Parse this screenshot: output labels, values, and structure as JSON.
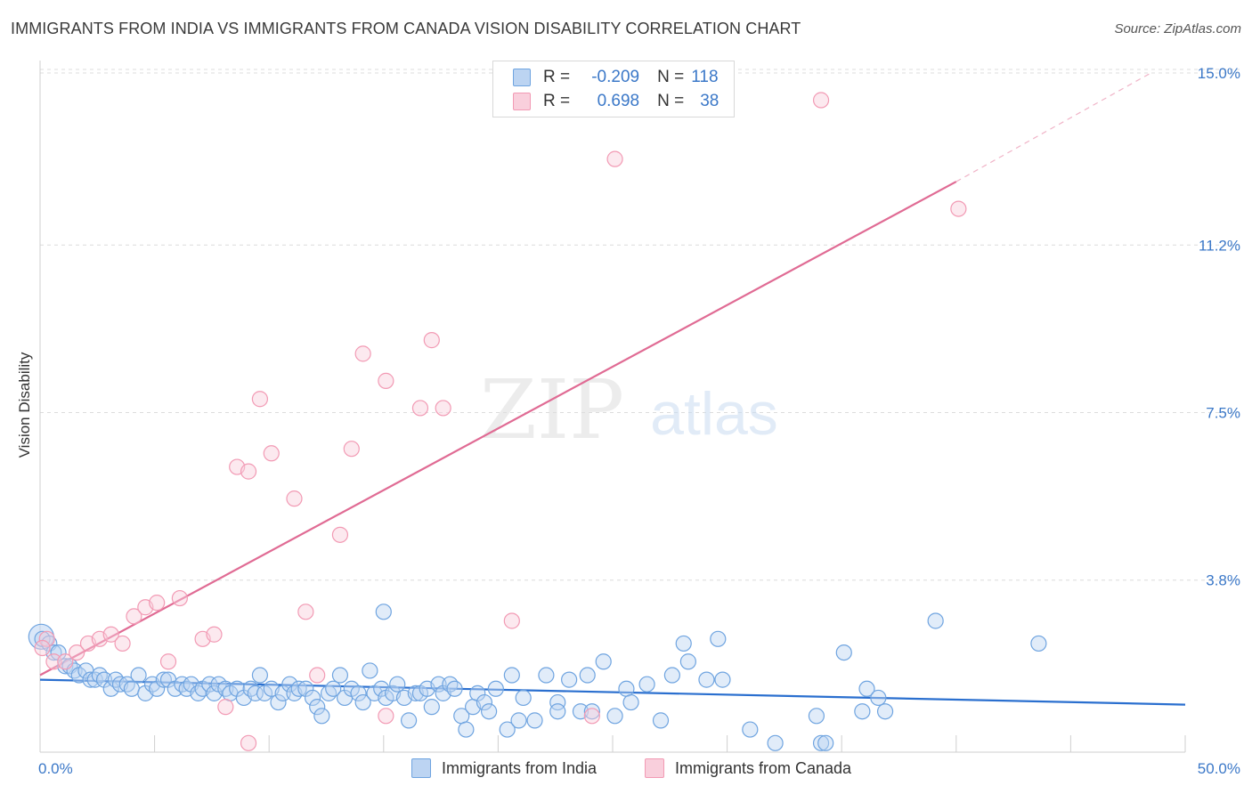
{
  "title": "IMMIGRANTS FROM INDIA VS IMMIGRANTS FROM CANADA VISION DISABILITY CORRELATION CHART",
  "source": "Source: ZipAtlas.com",
  "watermark": {
    "zip": "ZIP",
    "atlas": "atlas"
  },
  "legend": {
    "r_label": "R =",
    "n_label": "N =",
    "rows": [
      {
        "r": "-0.209",
        "n": "118",
        "color": "#6fa4e0",
        "fill": "#bcd4f2"
      },
      {
        "r": "0.698",
        "n": "38",
        "color": "#f29ab4",
        "fill": "#f9cfdc"
      }
    ]
  },
  "bottom_legend": [
    "Immigrants from India",
    "Immigrants from Canada"
  ],
  "chart_data": {
    "type": "scatter",
    "title": "IMMIGRANTS FROM INDIA VS IMMIGRANTS FROM CANADA VISION DISABILITY CORRELATION CHART",
    "xlabel": "",
    "ylabel": "Vision Disability",
    "xlim": [
      0,
      50
    ],
    "ylim": [
      0,
      15.0
    ],
    "x_tick_labels": [
      "0.0%",
      "50.0%"
    ],
    "y_ticks": [
      3.8,
      7.5,
      11.2,
      15.0
    ],
    "y_tick_labels": [
      "3.8%",
      "7.5%",
      "11.2%",
      "15.0%"
    ],
    "grid": true,
    "legend_position": "top-center",
    "series": [
      {
        "name": "Immigrants from India",
        "color": "#6fa4e0",
        "fill": "#bcd4f2",
        "trend": {
          "x": [
            0,
            50
          ],
          "y": [
            1.6,
            1.05
          ]
        },
        "points": [
          [
            0.1,
            2.5
          ],
          [
            0.4,
            2.4
          ],
          [
            0.6,
            2.2
          ],
          [
            0.8,
            2.2
          ],
          [
            1.1,
            1.9
          ],
          [
            1.3,
            1.9
          ],
          [
            1.5,
            1.8
          ],
          [
            1.7,
            1.7
          ],
          [
            2.0,
            1.8
          ],
          [
            2.2,
            1.6
          ],
          [
            2.4,
            1.6
          ],
          [
            2.6,
            1.7
          ],
          [
            2.8,
            1.6
          ],
          [
            3.1,
            1.4
          ],
          [
            3.3,
            1.6
          ],
          [
            3.5,
            1.5
          ],
          [
            3.8,
            1.5
          ],
          [
            4.0,
            1.4
          ],
          [
            4.3,
            1.7
          ],
          [
            4.6,
            1.3
          ],
          [
            4.9,
            1.5
          ],
          [
            5.1,
            1.4
          ],
          [
            5.4,
            1.6
          ],
          [
            5.6,
            1.6
          ],
          [
            5.9,
            1.4
          ],
          [
            6.2,
            1.5
          ],
          [
            6.4,
            1.4
          ],
          [
            6.6,
            1.5
          ],
          [
            6.9,
            1.3
          ],
          [
            7.1,
            1.4
          ],
          [
            7.4,
            1.5
          ],
          [
            7.6,
            1.3
          ],
          [
            7.8,
            1.5
          ],
          [
            8.1,
            1.4
          ],
          [
            8.3,
            1.3
          ],
          [
            8.6,
            1.4
          ],
          [
            8.9,
            1.2
          ],
          [
            9.2,
            1.4
          ],
          [
            9.4,
            1.3
          ],
          [
            9.6,
            1.7
          ],
          [
            9.8,
            1.3
          ],
          [
            10.1,
            1.4
          ],
          [
            10.4,
            1.1
          ],
          [
            10.6,
            1.3
          ],
          [
            10.9,
            1.5
          ],
          [
            11.1,
            1.3
          ],
          [
            11.3,
            1.4
          ],
          [
            11.6,
            1.4
          ],
          [
            11.9,
            1.2
          ],
          [
            12.1,
            1.0
          ],
          [
            12.3,
            0.8
          ],
          [
            12.6,
            1.3
          ],
          [
            12.8,
            1.4
          ],
          [
            13.1,
            1.7
          ],
          [
            13.3,
            1.2
          ],
          [
            13.6,
            1.4
          ],
          [
            13.9,
            1.3
          ],
          [
            14.1,
            1.1
          ],
          [
            14.4,
            1.8
          ],
          [
            14.6,
            1.3
          ],
          [
            14.9,
            1.4
          ],
          [
            15.1,
            1.2
          ],
          [
            15.4,
            1.3
          ],
          [
            15.6,
            1.5
          ],
          [
            15.9,
            1.2
          ],
          [
            16.1,
            0.7
          ],
          [
            16.4,
            1.3
          ],
          [
            16.6,
            1.3
          ],
          [
            16.9,
            1.4
          ],
          [
            17.1,
            1.0
          ],
          [
            17.4,
            1.5
          ],
          [
            17.6,
            1.3
          ],
          [
            17.9,
            1.5
          ],
          [
            18.1,
            1.4
          ],
          [
            18.4,
            0.8
          ],
          [
            18.6,
            0.5
          ],
          [
            18.9,
            1.0
          ],
          [
            19.1,
            1.3
          ],
          [
            19.4,
            1.1
          ],
          [
            19.6,
            0.9
          ],
          [
            19.9,
            1.4
          ],
          [
            20.4,
            0.5
          ],
          [
            20.6,
            1.7
          ],
          [
            20.9,
            0.7
          ],
          [
            21.1,
            1.2
          ],
          [
            21.6,
            0.7
          ],
          [
            22.1,
            1.7
          ],
          [
            22.6,
            1.1
          ],
          [
            22.6,
            0.9
          ],
          [
            23.1,
            1.6
          ],
          [
            23.6,
            0.9
          ],
          [
            23.9,
            1.7
          ],
          [
            24.1,
            0.9
          ],
          [
            24.6,
            2.0
          ],
          [
            25.1,
            0.8
          ],
          [
            25.6,
            1.4
          ],
          [
            25.8,
            1.1
          ],
          [
            27.1,
            0.7
          ],
          [
            27.6,
            1.7
          ],
          [
            28.1,
            2.4
          ],
          [
            28.3,
            2.0
          ],
          [
            29.1,
            1.6
          ],
          [
            29.6,
            2.5
          ],
          [
            29.8,
            1.6
          ],
          [
            32.1,
            0.2
          ],
          [
            33.9,
            0.8
          ],
          [
            34.1,
            0.2
          ],
          [
            34.3,
            0.2
          ],
          [
            35.1,
            2.2
          ],
          [
            35.9,
            0.9
          ],
          [
            36.1,
            1.4
          ],
          [
            36.6,
            1.2
          ],
          [
            36.9,
            0.9
          ],
          [
            39.1,
            2.9
          ],
          [
            43.6,
            2.4
          ],
          [
            31.0,
            0.5
          ],
          [
            15.0,
            3.1
          ],
          [
            26.5,
            1.5
          ]
        ],
        "big_points": [
          [
            0.05,
            2.55
          ]
        ]
      },
      {
        "name": "Immigrants from Canada",
        "color": "#f29ab4",
        "fill": "#f9cfdc",
        "trend": {
          "x": [
            0,
            40
          ],
          "y": [
            1.7,
            12.6
          ]
        },
        "trend_ext": {
          "x": [
            40,
            48.5
          ],
          "y": [
            12.6,
            15.0
          ]
        },
        "points": [
          [
            0.3,
            2.5
          ],
          [
            0.6,
            2.0
          ],
          [
            1.1,
            2.0
          ],
          [
            1.6,
            2.2
          ],
          [
            2.1,
            2.4
          ],
          [
            2.6,
            2.5
          ],
          [
            3.1,
            2.6
          ],
          [
            3.6,
            2.4
          ],
          [
            4.1,
            3.0
          ],
          [
            4.6,
            3.2
          ],
          [
            5.1,
            3.3
          ],
          [
            5.6,
            2.0
          ],
          [
            6.1,
            3.4
          ],
          [
            7.1,
            2.5
          ],
          [
            7.6,
            2.6
          ],
          [
            8.1,
            1.0
          ],
          [
            8.6,
            6.3
          ],
          [
            9.1,
            6.2
          ],
          [
            9.6,
            7.8
          ],
          [
            9.1,
            0.2
          ],
          [
            10.1,
            6.6
          ],
          [
            11.1,
            5.6
          ],
          [
            11.6,
            3.1
          ],
          [
            12.1,
            1.7
          ],
          [
            13.1,
            4.8
          ],
          [
            13.6,
            6.7
          ],
          [
            14.1,
            8.8
          ],
          [
            15.1,
            8.2
          ],
          [
            16.6,
            7.6
          ],
          [
            17.1,
            9.1
          ],
          [
            17.6,
            7.6
          ],
          [
            15.1,
            0.8
          ],
          [
            20.6,
            2.9
          ],
          [
            24.1,
            0.8
          ],
          [
            25.1,
            13.1
          ],
          [
            34.1,
            14.4
          ],
          [
            40.1,
            12.0
          ],
          [
            0.1,
            2.3
          ]
        ],
        "big_points": []
      }
    ]
  }
}
